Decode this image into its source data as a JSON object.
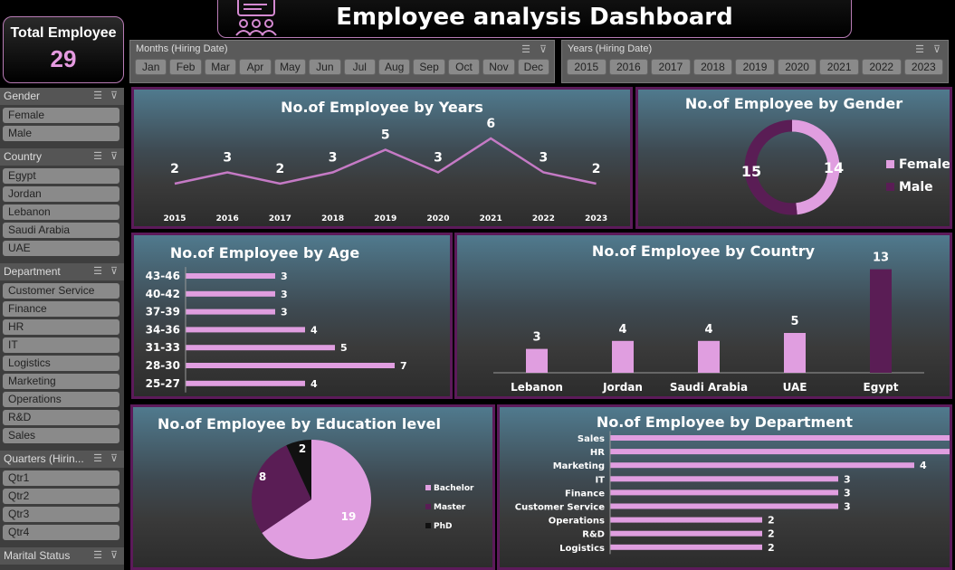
{
  "total": {
    "label": "Total Employee",
    "value": "29"
  },
  "title": "Employee analysis Dashboard",
  "months": {
    "label": "Months (Hiring Date)",
    "items": [
      "Jan",
      "Feb",
      "Mar",
      "Apr",
      "May",
      "Jun",
      "Jul",
      "Aug",
      "Sep",
      "Oct",
      "Nov",
      "Dec"
    ]
  },
  "years": {
    "label": "Years (Hiring Date)",
    "items": [
      "2015",
      "2016",
      "2017",
      "2018",
      "2019",
      "2020",
      "2021",
      "2022",
      "2023"
    ]
  },
  "sidebar": [
    {
      "label": "Gender",
      "items": [
        "Female",
        "Male"
      ]
    },
    {
      "label": "Country",
      "items": [
        "Egypt",
        "Jordan",
        "Lebanon",
        "Saudi Arabia",
        "UAE"
      ]
    },
    {
      "label": "Department",
      "items": [
        "Customer Service",
        "Finance",
        "HR",
        "IT",
        "Logistics",
        "Marketing",
        "Operations",
        "R&D",
        "Sales"
      ]
    },
    {
      "label": "Quarters (Hirin...",
      "items": [
        "Qtr1",
        "Qtr2",
        "Qtr3",
        "Qtr4"
      ]
    },
    {
      "label": "Marital Status",
      "items": []
    }
  ],
  "colors": {
    "pink": "#e09ee0",
    "dark": "#5a1d55",
    "black": "#111111",
    "border": "#5c1a5a"
  },
  "chart_data": [
    {
      "type": "line",
      "title": "No.of Employee by Years",
      "categories": [
        "2015",
        "2016",
        "2017",
        "2018",
        "2019",
        "2020",
        "2021",
        "2022",
        "2023"
      ],
      "values": [
        2,
        3,
        2,
        3,
        5,
        3,
        6,
        3,
        2
      ]
    },
    {
      "type": "pie",
      "subtype": "donut",
      "title": "No.of Employee by Gender",
      "categories": [
        "Female",
        "Male"
      ],
      "values": [
        14,
        15
      ],
      "legend": "right"
    },
    {
      "type": "bar",
      "orientation": "horizontal",
      "title": "No.of Employee by Age",
      "categories": [
        "43-46",
        "40-42",
        "37-39",
        "34-36",
        "31-33",
        "28-30",
        "25-27"
      ],
      "values": [
        3,
        3,
        3,
        4,
        5,
        7,
        4
      ]
    },
    {
      "type": "bar",
      "title": "No.of Employee by Country",
      "categories": [
        "Lebanon",
        "Jordan",
        "Saudi Arabia",
        "UAE",
        "Egypt"
      ],
      "values": [
        3,
        4,
        4,
        5,
        13
      ]
    },
    {
      "type": "pie",
      "title": "No.of Employee by Education level",
      "categories": [
        "Bachelor",
        "Master",
        "PhD"
      ],
      "values": [
        19,
        8,
        2
      ],
      "legend": "right"
    },
    {
      "type": "bar",
      "orientation": "horizontal",
      "title": "No.of Employee by Department",
      "categories": [
        "Sales",
        "HR",
        "Marketing",
        "IT",
        "Finance",
        "Customer Service",
        "Operations",
        "R&D",
        "Logistics"
      ],
      "values": [
        5,
        5,
        4,
        3,
        3,
        3,
        2,
        2,
        2
      ]
    }
  ]
}
